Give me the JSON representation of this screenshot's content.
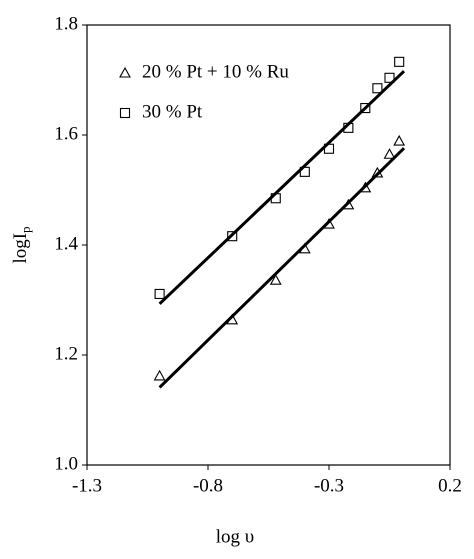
{
  "chart_data": {
    "type": "scatter",
    "x_label": "log υ",
    "y_label": "logI",
    "y_label_sub": "p",
    "xlim": [
      -1.3,
      0.2
    ],
    "ylim": [
      1.0,
      1.8
    ],
    "xticks": [
      -1.3,
      -0.8,
      -0.3,
      0.2
    ],
    "yticks": [
      {
        "value": 1.0,
        "label": "1.0"
      },
      1.2,
      1.4,
      1.6,
      1.8
    ],
    "legend": "upper-left",
    "series": [
      {
        "name": "20 % Pt + 10 % Ru",
        "marker": "triangle",
        "color": "#000000",
        "x": [
          -1.0,
          -0.7,
          -0.52,
          -0.4,
          -0.3,
          -0.22,
          -0.15,
          -0.1,
          -0.05,
          -0.01
        ],
        "values": [
          1.162,
          1.264,
          1.336,
          1.393,
          1.438,
          1.473,
          1.504,
          1.531,
          1.565,
          1.589
        ],
        "fit_x": [
          -1.0,
          0.01
        ],
        "fit_y": [
          1.141,
          1.576
        ]
      },
      {
        "name": "30 % Pt",
        "marker": "square",
        "color": "#000000",
        "x": [
          -1.0,
          -0.7,
          -0.52,
          -0.4,
          -0.3,
          -0.22,
          -0.15,
          -0.1,
          -0.05,
          -0.01
        ],
        "values": [
          1.311,
          1.416,
          1.485,
          1.533,
          1.575,
          1.613,
          1.649,
          1.685,
          1.704,
          1.733
        ],
        "fit_x": [
          -1.0,
          0.01
        ],
        "fit_y": [
          1.293,
          1.716
        ]
      }
    ]
  }
}
